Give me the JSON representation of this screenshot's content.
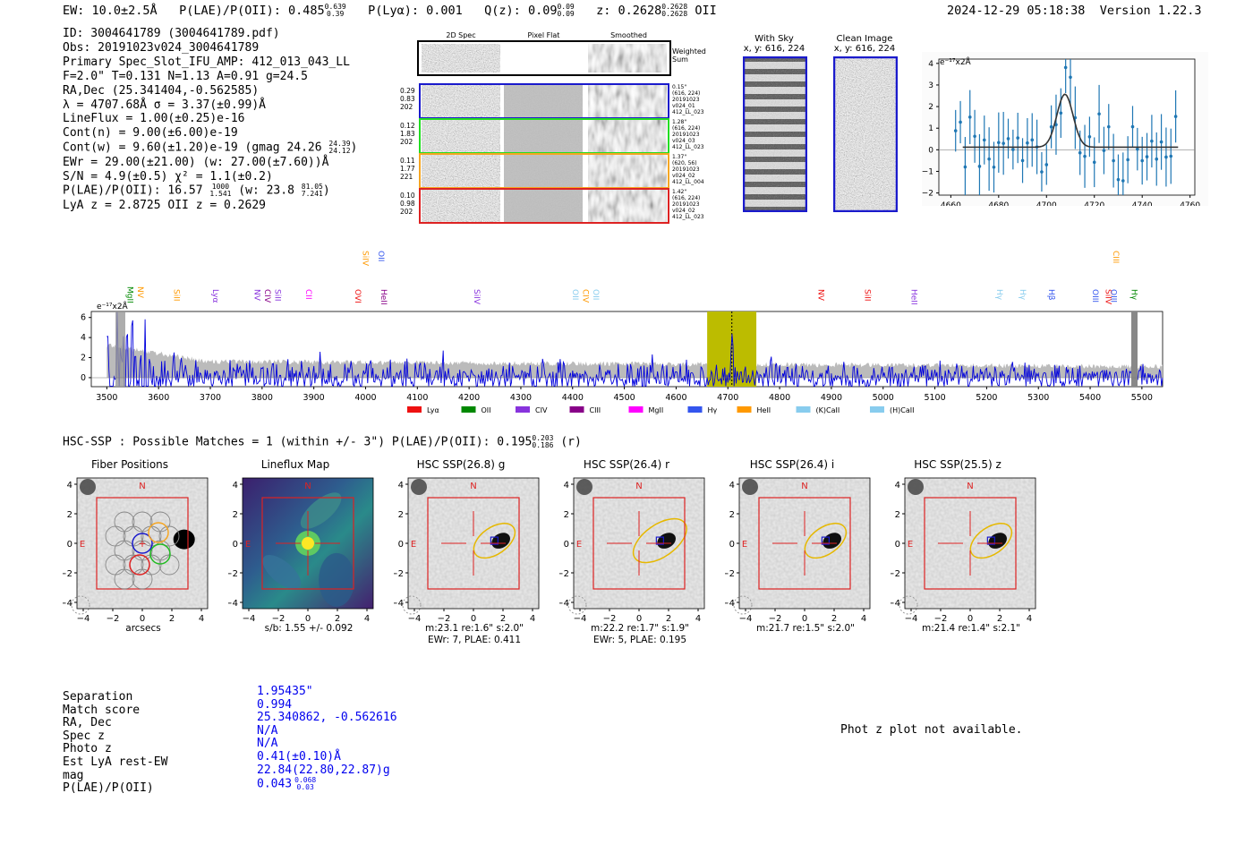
{
  "header": {
    "ew": "EW: 10.0±2.5Å",
    "plae_label": "P(LAE)/P(OII): 0.485",
    "plae_hi": "0.639",
    "plae_lo": "0.39",
    "plya": "P(Lyα): 0.001",
    "qz_label": "Q(z): 0.09",
    "qz_hi": "0.09",
    "qz_lo": "0.09",
    "z_label": "z: 0.2628",
    "z_hi": "0.2628",
    "z_lo": "0.2628",
    "z_line": "OII",
    "timestamp": "2024-12-29 05:18:38",
    "version": "Version 1.22.3"
  },
  "info": {
    "id": "ID: 3004641789 (3004641789.pdf)",
    "obs": "Obs: 20191023v024_3004641789",
    "primary": "Primary Spec_Slot_IFU_AMP: 412_013_043_LL",
    "params": "F=2.0\"  T=0.131  N=1.13  A=0.91  g=24.5",
    "radec": "RA,Dec (25.341404,-0.562585)",
    "lambda": "λ = 4707.68Å  σ = 3.37(±0.99)Å",
    "lineflux": "LineFlux = 1.00(±0.25)e-16",
    "contn": "Cont(n) = 9.00(±6.00)e-19",
    "contw": "Cont(w) = 9.60(±1.20)e-19 (gmag 24.26",
    "contw_hi": "24.39",
    "contw_lo": "24.12",
    "contw_end": ")",
    "ewr": "EWr = 29.00(±21.00) (w: 27.00(±7.60))Å",
    "sn": "S/N = 4.9(±0.5)  χ² = 1.1(±0.2)",
    "plae_a": "P(LAE)/P(OII): 16.57",
    "plae_a_hi": "1000",
    "plae_a_lo": "1.541",
    "plae_w": "(w: 23.8",
    "plae_w_hi": "81.05",
    "plae_w_lo": "7.241",
    "plae_w_end": ")",
    "lyaz": "LyA z = 2.8725  OII z = 0.2629"
  },
  "cutouts": {
    "col_labels": [
      "2D Spec",
      "Pixel Flat",
      "Smoothed"
    ],
    "weighted": "Weighted\nSum",
    "rows": [
      {
        "left": [
          "0.29",
          "0.83",
          "202"
        ],
        "right": [
          "0.15\"",
          "(616, 224)",
          "20191023",
          "v024_01",
          "412_LL_023"
        ],
        "color": "#1a1acc"
      },
      {
        "left": [
          "0.12",
          "1.83",
          "202"
        ],
        "right": [
          "1.28\"",
          "(616, 224)",
          "20191023",
          "v024_03",
          "412_LL_023"
        ],
        "color": "#22dd22"
      },
      {
        "left": [
          "0.11",
          "1.77",
          "221"
        ],
        "right": [
          "1.37\"",
          "(620, 56)",
          "20191023",
          "v024_02",
          "412_LL_004"
        ],
        "color": "#f5a623"
      },
      {
        "left": [
          "0.10",
          "0.98",
          "202"
        ],
        "right": [
          "1.42\"",
          "(616, 224)",
          "20191023",
          "v024_02",
          "412_LL_023"
        ],
        "color": "#dd2222"
      }
    ]
  },
  "sky": {
    "with_sky": "With Sky",
    "with_sky_coord": "x, y: 616, 224",
    "clean": "Clean Image",
    "clean_coord": "x, y: 616, 224"
  },
  "fitplot": {
    "unit": "e⁻¹⁷x2Å",
    "xticks": [
      "4660",
      "4680",
      "4700",
      "4720",
      "4740",
      "4760"
    ],
    "yticks": [
      "4",
      "3",
      "2",
      "1",
      "0",
      "−1",
      "−2"
    ]
  },
  "spectrum": {
    "unit": "e⁻¹⁷x2Å",
    "xticks": [
      "3500",
      "3600",
      "3700",
      "3800",
      "3900",
      "4000",
      "4100",
      "4200",
      "4300",
      "4400",
      "4500",
      "4600",
      "4700",
      "4800",
      "4900",
      "5000",
      "5100",
      "5200",
      "5300",
      "5400",
      "5500"
    ],
    "yticks": [
      "6",
      "4",
      "2",
      "0"
    ],
    "legend": [
      {
        "label": "Lyα",
        "color": "#ee1111"
      },
      {
        "label": "OII",
        "color": "#008800"
      },
      {
        "label": "CIV",
        "color": "#8833dd"
      },
      {
        "label": "CIII",
        "color": "#880088"
      },
      {
        "label": "MgII",
        "color": "#ff00ff"
      },
      {
        "label": "Hγ",
        "color": "#3355ee"
      },
      {
        "label": "HeII",
        "color": "#ff9900"
      },
      {
        "label": "(K)CaII",
        "color": "#88ccee"
      },
      {
        "label": "(H)CaII",
        "color": "#88ccee"
      }
    ],
    "line_labels": [
      {
        "name": "MgII",
        "color": "#008800",
        "row": 1
      },
      {
        "name": "NV",
        "color": "#ff9900",
        "row": 1
      },
      {
        "name": "SiII",
        "color": "#ff9900",
        "row": 2
      },
      {
        "name": "Lyα",
        "color": "#8833dd",
        "row": 2
      },
      {
        "name": "NV",
        "color": "#8833dd",
        "row": 2
      },
      {
        "name": "CIV",
        "color": "#880088",
        "row": 2
      },
      {
        "name": "SiII",
        "color": "#8833dd",
        "row": 2
      },
      {
        "name": "CII",
        "color": "#ff00ff",
        "row": 2
      },
      {
        "name": "OVI",
        "color": "#ee1111",
        "row": 2
      },
      {
        "name": "SiIV",
        "color": "#ff9900",
        "row": 0
      },
      {
        "name": "OII",
        "color": "#3355ee",
        "row": 0
      },
      {
        "name": "HeII",
        "color": "#880088",
        "row": 2
      },
      {
        "name": "SiIV",
        "color": "#8833dd",
        "row": 2
      },
      {
        "name": "OII",
        "color": "#88ccee",
        "row": 2
      },
      {
        "name": "CIV",
        "color": "#ff9900",
        "row": 2
      },
      {
        "name": "OII",
        "color": "#88ccee",
        "row": 2
      },
      {
        "name": "NV",
        "color": "#ee1111",
        "row": 2
      },
      {
        "name": "SiII",
        "color": "#ee1111",
        "row": 2
      },
      {
        "name": "HeII",
        "color": "#8833dd",
        "row": 2
      },
      {
        "name": "Hγ",
        "color": "#88ccee",
        "row": 2
      },
      {
        "name": "Hγ",
        "color": "#88ccee",
        "row": 2
      },
      {
        "name": "Hβ",
        "color": "#3355ee",
        "row": 2
      },
      {
        "name": "OIII",
        "color": "#3355ee",
        "row": 2
      },
      {
        "name": "SiIV",
        "color": "#ee1111",
        "row": 2
      },
      {
        "name": "OIII",
        "color": "#3355ee",
        "row": 2
      },
      {
        "name": "CIII",
        "color": "#ff9900",
        "row": 0
      },
      {
        "name": "Hγ",
        "color": "#008800",
        "row": 2
      }
    ]
  },
  "hsc": {
    "title_main": "HSC-SSP : Possible Matches = 1 (within +/- 3\")  P(LAE)/P(OII): 0.195",
    "title_hi": "0.203",
    "title_lo": "0.186",
    "title_end": "(r)",
    "panels": [
      {
        "title": "Fiber Positions",
        "cap1": "arcsecs",
        "cap2": ""
      },
      {
        "title": "Lineflux Map",
        "cap1": "s/b: 1.55 +/- 0.092",
        "cap2": ""
      },
      {
        "title": "HSC SSP(26.8) g",
        "cap1": "m:23.1  re:1.6\"  s:2.0\"",
        "cap2": "EWr: 7, PLAE: 0.411"
      },
      {
        "title": "HSC SSP(26.4) r",
        "cap1": "m:22.2  re:1.7\"  s:1.9\"",
        "cap2": "EWr: 5, PLAE: 0.195"
      },
      {
        "title": "HSC SSP(26.4) i",
        "cap1": "m:21.7  re:1.5\"  s:2.0\"",
        "cap2": ""
      },
      {
        "title": "HSC SSP(25.5) z",
        "cap1": "m:21.4  re:1.4\"  s:2.1\"",
        "cap2": ""
      }
    ],
    "compass_n": "N",
    "compass_e": "E",
    "xticks": [
      "−4",
      "−2",
      "0",
      "2",
      "4"
    ],
    "yticks": [
      "4",
      "2",
      "0",
      "−2",
      "−4"
    ]
  },
  "match": {
    "labels": [
      "Separation",
      "Match score",
      "RA, Dec",
      "Spec z",
      "Photo z",
      "Est LyA rest-EW",
      "mag",
      "P(LAE)/P(OII)"
    ],
    "values": [
      "1.95435\"",
      "0.994",
      "25.340862, -0.562616",
      "N/A",
      "N/A",
      "0.41(±0.10)Å",
      "22.84(22.80,22.87)g",
      "0.043"
    ],
    "plae_hi": "0.068",
    "plae_lo": "0.03",
    "photz_note": "Phot z plot not available."
  }
}
